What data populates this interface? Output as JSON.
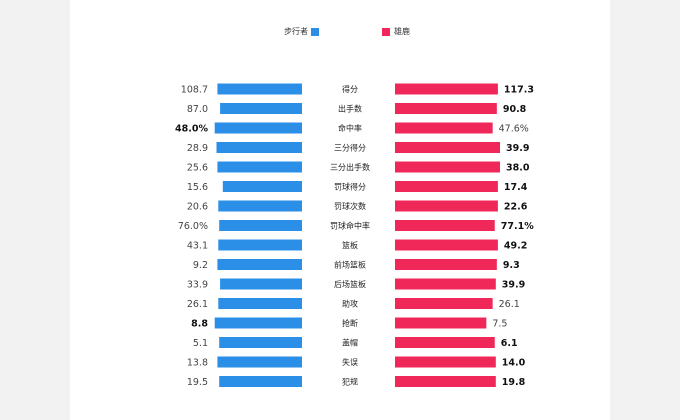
{
  "chart_data": {
    "type": "bar",
    "orientation": "horizontal-mirrored",
    "legend_position": "top",
    "series": [
      {
        "name": "步行者",
        "color": "#2b8fe8",
        "values": [
          108.7,
          87.0,
          48.0,
          28.9,
          25.6,
          15.6,
          20.6,
          76.0,
          43.1,
          9.2,
          33.9,
          26.1,
          8.8,
          5.1,
          13.8,
          19.5
        ],
        "labels": [
          "108.7",
          "87.0",
          "48.0%",
          "28.9",
          "25.6",
          "15.6",
          "20.6",
          "76.0%",
          "43.1",
          "9.2",
          "33.9",
          "26.1",
          "8.8",
          "5.1",
          "13.8",
          "19.5"
        ]
      },
      {
        "name": "雄鹿",
        "color": "#f0285a",
        "values": [
          117.3,
          90.8,
          47.6,
          39.9,
          38.0,
          17.4,
          22.6,
          77.1,
          49.2,
          9.3,
          39.9,
          26.1,
          7.5,
          6.1,
          14.0,
          19.8
        ],
        "labels": [
          "117.3",
          "90.8",
          "47.6%",
          "39.9",
          "38.0",
          "17.4",
          "22.6",
          "77.1%",
          "49.2",
          "9.3",
          "39.9",
          "26.1",
          "7.5",
          "6.1",
          "14.0",
          "19.8"
        ]
      }
    ],
    "categories": [
      "得分",
      "出手数",
      "命中率",
      "三分得分",
      "三分出手数",
      "罚球得分",
      "罚球次数",
      "罚球命中率",
      "篮板",
      "前场篮板",
      "后场篮板",
      "助攻",
      "抢断",
      "盖帽",
      "失误",
      "犯规"
    ],
    "bar_fill_fraction": {
      "left": [
        0.94,
        0.91,
        0.97,
        0.95,
        0.94,
        0.88,
        0.93,
        0.92,
        0.93,
        0.94,
        0.91,
        0.93,
        0.97,
        0.92,
        0.94,
        0.92
      ],
      "right": [
        0.98,
        0.97,
        0.93,
        1.0,
        1.0,
        0.98,
        0.98,
        0.95,
        0.98,
        0.97,
        0.96,
        0.93,
        0.87,
        0.95,
        0.96,
        0.96
      ]
    },
    "bold_left": [
      false,
      false,
      true,
      false,
      false,
      false,
      false,
      false,
      false,
      false,
      false,
      false,
      true,
      false,
      false,
      false
    ],
    "bold_right": [
      true,
      true,
      false,
      true,
      true,
      true,
      true,
      true,
      true,
      true,
      true,
      false,
      false,
      true,
      true,
      true
    ]
  }
}
